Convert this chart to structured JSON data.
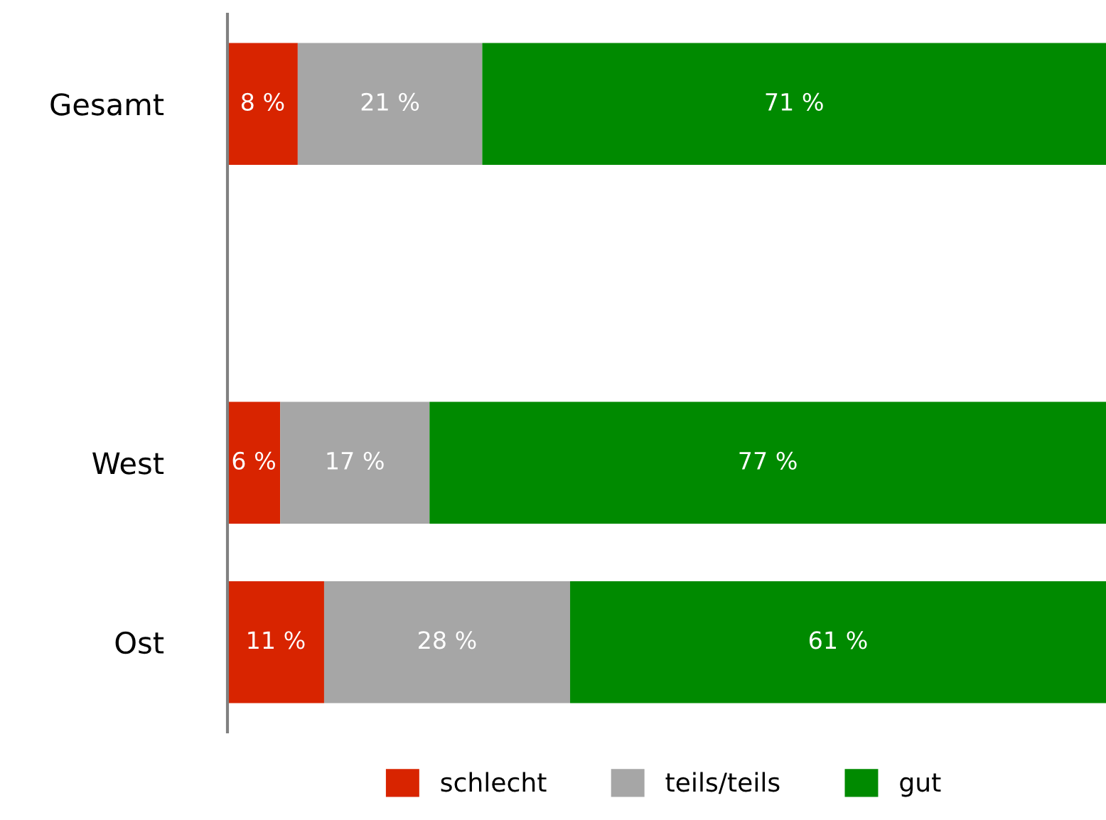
{
  "chart_data": {
    "type": "bar",
    "orientation": "horizontal",
    "stacked": true,
    "categories": [
      "Gesamt",
      null,
      "West",
      "Ost"
    ],
    "series": [
      {
        "name": "schlecht",
        "color": "#d82400",
        "values": [
          8,
          null,
          6,
          11
        ],
        "value_labels": [
          "8 %",
          null,
          "6 %",
          "11 %"
        ]
      },
      {
        "name": "teils/teils",
        "color": "#a6a6a6",
        "values": [
          21,
          null,
          17,
          28
        ],
        "value_labels": [
          "21 %",
          null,
          "17 %",
          "28 %"
        ]
      },
      {
        "name": "gut",
        "color": "#008a00",
        "values": [
          71,
          null,
          77,
          61
        ],
        "value_labels": [
          "71 %",
          null,
          "77 %",
          "61 %"
        ]
      }
    ],
    "xlim": [
      0,
      100
    ],
    "tick_labels": "y",
    "grid": false,
    "legend": "bottom"
  }
}
